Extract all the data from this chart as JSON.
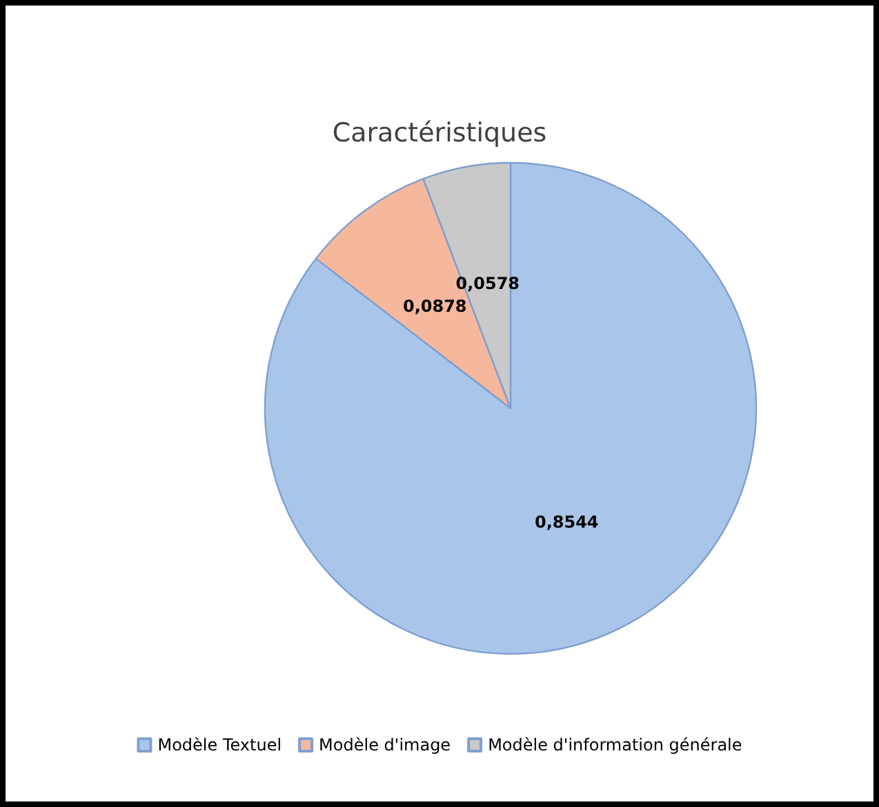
{
  "chart_data": {
    "type": "pie",
    "title": "Caractéristiques",
    "categories": [
      "Modèle Textuel",
      "Modèle d'image",
      "Modèle d'information générale"
    ],
    "values": [
      0.8544,
      0.0878,
      0.0578
    ],
    "value_labels": [
      "0,8544",
      "0,0878",
      "0,0578"
    ],
    "colors": [
      "#a9c5ea",
      "#f5b89c",
      "#c9c9c9"
    ],
    "legend": "bottom"
  }
}
